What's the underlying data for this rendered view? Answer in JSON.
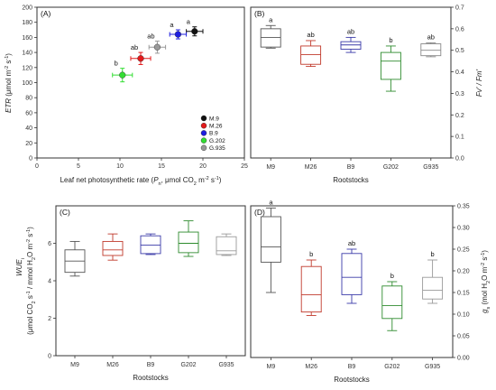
{
  "chart_data": [
    {
      "panel": "(A)",
      "type": "scatter",
      "xlabel_parts": [
        "Leaf net photosynthetic rate (",
        "P",
        "n",
        ", μmol CO",
        "2",
        " m",
        "-2",
        " s",
        "-1",
        ")"
      ],
      "ylabel_parts": [
        "ETR",
        " (μmol m",
        "-2",
        " s",
        "-1",
        ")"
      ],
      "xlim": [
        0,
        25
      ],
      "ylim": [
        0,
        200
      ],
      "xticks": [
        "0",
        "5",
        "10",
        "15",
        "20",
        "25"
      ],
      "yticks": [
        "0",
        "20",
        "40",
        "60",
        "80",
        "100",
        "120",
        "140",
        "160",
        "180",
        "200"
      ],
      "series": [
        {
          "name": "M.9",
          "color": "#111111",
          "x": 19.0,
          "xerr": 1.0,
          "y": 168,
          "yerr": 6,
          "letter": "a"
        },
        {
          "name": "M.26",
          "color": "#e31a1c",
          "x": 12.5,
          "xerr": 1.2,
          "y": 132,
          "yerr": 8,
          "letter": "ab"
        },
        {
          "name": "B.9",
          "color": "#1f1fe0",
          "x": 17.0,
          "xerr": 1.0,
          "y": 164,
          "yerr": 6,
          "letter": "a"
        },
        {
          "name": "G.202",
          "color": "#33dd33",
          "x": 10.3,
          "xerr": 1.2,
          "y": 110,
          "yerr": 9,
          "letter": "b"
        },
        {
          "name": "G.935",
          "color": "#999999",
          "x": 14.5,
          "xerr": 1.0,
          "y": 147,
          "yerr": 8,
          "letter": "ab"
        }
      ],
      "legend_position": "bottom-right"
    },
    {
      "panel": "(B)",
      "type": "box",
      "ylabel": "Fv' / Fm'",
      "xlabel": "Rootstocks",
      "ylim": [
        0,
        0.7
      ],
      "yticks": [
        "0.0",
        "0.1",
        "0.2",
        "0.3",
        "0.4",
        "0.5",
        "0.6",
        "0.7"
      ],
      "categories": [
        "M9",
        "M26",
        "B9",
        "G202",
        "G935"
      ],
      "colors": [
        "#555555",
        "#c0392b",
        "#3a3aa8",
        "#2e8b2e",
        "#888888"
      ],
      "boxes": [
        {
          "min": 0.51,
          "q1": 0.515,
          "median": 0.56,
          "q3": 0.6,
          "max": 0.615
        },
        {
          "min": 0.425,
          "q1": 0.435,
          "median": 0.48,
          "q3": 0.52,
          "max": 0.545
        },
        {
          "min": 0.49,
          "q1": 0.505,
          "median": 0.525,
          "q3": 0.54,
          "max": 0.56
        },
        {
          "min": 0.31,
          "q1": 0.365,
          "median": 0.45,
          "q3": 0.49,
          "max": 0.52
        },
        {
          "min": 0.47,
          "q1": 0.475,
          "median": 0.5,
          "q3": 0.53,
          "max": 0.535
        }
      ],
      "letters": [
        "a",
        "ab",
        "ab",
        "b",
        "ab"
      ],
      "tick_side": "right"
    },
    {
      "panel": "(C)",
      "type": "box",
      "ylabel_parts": [
        "WUE",
        "i"
      ],
      "ylabel2_parts": [
        "(μmol CO",
        "2",
        " s",
        "-1",
        " / mmol H",
        "2",
        "O m",
        "-2",
        " s",
        "-1",
        ")"
      ],
      "xlabel": "Rootstocks",
      "ylim": [
        0,
        8
      ],
      "yticks": [
        "0",
        "2",
        "4",
        "6"
      ],
      "categories": [
        "M9",
        "M26",
        "B9",
        "G202",
        "G935"
      ],
      "colors": [
        "#555555",
        "#c0392b",
        "#3a3aa8",
        "#2e8b2e",
        "#999999"
      ],
      "boxes": [
        {
          "min": 4.25,
          "q1": 4.45,
          "median": 5.05,
          "q3": 5.65,
          "max": 6.1
        },
        {
          "min": 5.1,
          "q1": 5.35,
          "median": 5.65,
          "q3": 6.1,
          "max": 6.5
        },
        {
          "min": 5.4,
          "q1": 5.45,
          "median": 5.9,
          "q3": 6.4,
          "max": 6.5
        },
        {
          "min": 5.3,
          "q1": 5.5,
          "median": 6.0,
          "q3": 6.6,
          "max": 7.2
        },
        {
          "min": 5.35,
          "q1": 5.4,
          "median": 5.6,
          "q3": 6.35,
          "max": 6.5
        }
      ],
      "letters": [
        "",
        "",
        "",
        "",
        ""
      ],
      "tick_side": "left"
    },
    {
      "panel": "(D)",
      "type": "box",
      "ylabel_parts": [
        "g",
        "s",
        " (mol H",
        "2",
        "O m",
        "-2",
        " s",
        "-1",
        ")"
      ],
      "xlabel": "Rootstocks",
      "ylim": [
        0,
        0.35
      ],
      "yticks": [
        "0.00",
        "0.05",
        "0.10",
        "0.15",
        "0.20",
        "0.25",
        "0.30",
        "0.35"
      ],
      "categories": [
        "M9",
        "M26",
        "B9",
        "G202",
        "G935"
      ],
      "colors": [
        "#555555",
        "#c0392b",
        "#3a3aa8",
        "#2e8b2e",
        "#999999"
      ],
      "boxes": [
        {
          "min": 0.15,
          "q1": 0.22,
          "median": 0.255,
          "q3": 0.325,
          "max": 0.345
        },
        {
          "min": 0.097,
          "q1": 0.105,
          "median": 0.145,
          "q3": 0.21,
          "max": 0.225
        },
        {
          "min": 0.125,
          "q1": 0.145,
          "median": 0.185,
          "q3": 0.24,
          "max": 0.25
        },
        {
          "min": 0.062,
          "q1": 0.09,
          "median": 0.12,
          "q3": 0.165,
          "max": 0.175
        },
        {
          "min": 0.125,
          "q1": 0.135,
          "median": 0.155,
          "q3": 0.185,
          "max": 0.225
        }
      ],
      "letters": [
        "a",
        "b",
        "ab",
        "b",
        "b"
      ],
      "tick_side": "right"
    }
  ]
}
